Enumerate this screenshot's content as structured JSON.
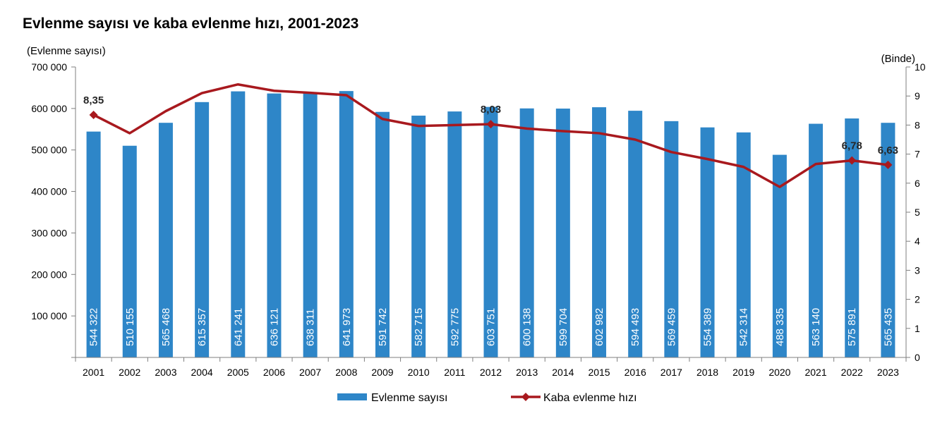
{
  "chart_data": {
    "type": "bar+line",
    "title": "Evlenme sayısı ve kaba evlenme hızı, 2001-2023",
    "categories": [
      "2001",
      "2002",
      "2003",
      "2004",
      "2005",
      "2006",
      "2007",
      "2008",
      "2009",
      "2010",
      "2011",
      "2012",
      "2013",
      "2014",
      "2015",
      "2016",
      "2017",
      "2018",
      "2019",
      "2020",
      "2021",
      "2022",
      "2023"
    ],
    "series": [
      {
        "name": "Evlenme sayısı",
        "type": "bar",
        "axis": "left",
        "color": "#2e86c8",
        "values": [
          544322,
          510155,
          565468,
          615357,
          641241,
          636121,
          638311,
          641973,
          591742,
          582715,
          592775,
          603751,
          600138,
          599704,
          602982,
          594493,
          569459,
          554389,
          542314,
          488335,
          563140,
          575891,
          565435
        ],
        "labels": [
          "544 322",
          "510 155",
          "565 468",
          "615 357",
          "641 241",
          "636 121",
          "638 311",
          "641 973",
          "591 742",
          "582 715",
          "592 775",
          "603 751",
          "600 138",
          "599 704",
          "602 982",
          "594 493",
          "569 459",
          "554 389",
          "542 314",
          "488 335",
          "563 140",
          "575 891",
          "565 435"
        ]
      },
      {
        "name": "Kaba evlenme hızı",
        "type": "line",
        "axis": "right",
        "color": "#a8191e",
        "values": [
          8.35,
          7.72,
          8.48,
          9.1,
          9.4,
          9.18,
          9.11,
          9.03,
          8.21,
          7.97,
          8.0,
          8.03,
          7.88,
          7.79,
          7.72,
          7.5,
          7.07,
          6.83,
          6.56,
          5.87,
          6.66,
          6.78,
          6.63
        ],
        "annotations": [
          {
            "index": 0,
            "text": "8,35"
          },
          {
            "index": 11,
            "text": "8,03"
          },
          {
            "index": 21,
            "text": "6,78"
          },
          {
            "index": 22,
            "text": "6,63"
          }
        ]
      }
    ],
    "y_left": {
      "label": "(Evlenme sayısı)",
      "ylim": [
        0,
        700000
      ],
      "ticks": [
        0,
        100000,
        200000,
        300000,
        400000,
        500000,
        600000,
        700000
      ],
      "tick_labels": [
        "",
        "100 000",
        "200 000",
        "300 000",
        "400 000",
        "500 000",
        "600 000",
        "700 000"
      ]
    },
    "y_right": {
      "label": "(Binde)",
      "ylim": [
        0,
        10
      ],
      "ticks": [
        0,
        1,
        2,
        3,
        4,
        5,
        6,
        7,
        8,
        9,
        10
      ],
      "tick_labels": [
        "0",
        "1",
        "2",
        "3",
        "4",
        "5",
        "6",
        "7",
        "8",
        "9",
        "10"
      ]
    },
    "grid": false,
    "legend_position": "bottom"
  }
}
